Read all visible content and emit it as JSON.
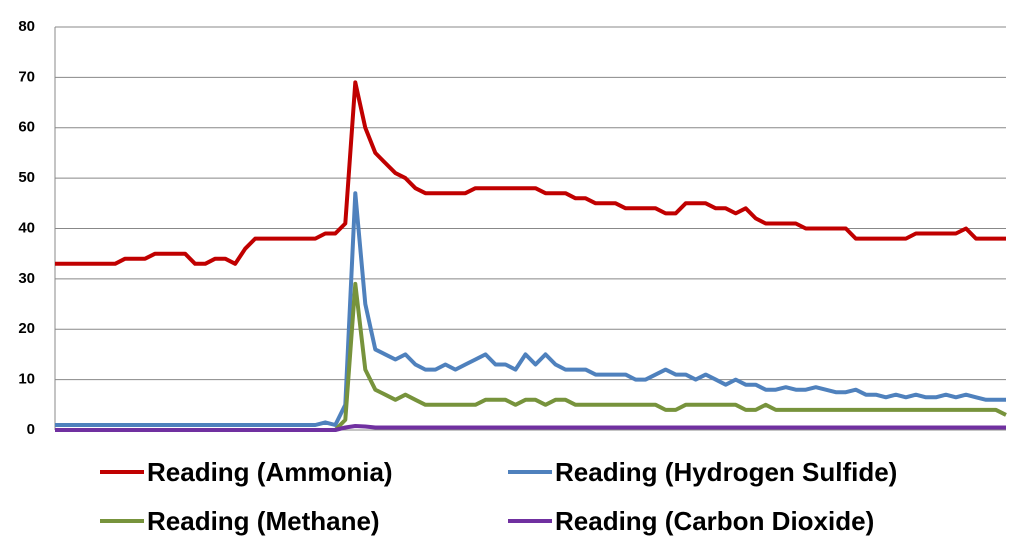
{
  "chart_data": {
    "type": "line",
    "ylim": [
      0,
      80
    ],
    "yticks": [
      0,
      10,
      20,
      30,
      40,
      50,
      60,
      70,
      80
    ],
    "grid": true,
    "series": [
      {
        "name": "Reading (Ammonia)",
        "color": "#c00000",
        "values": [
          33,
          33,
          33,
          33,
          33,
          33,
          33,
          34,
          34,
          34,
          35,
          35,
          35,
          35,
          33,
          33,
          34,
          34,
          33,
          36,
          38,
          38,
          38,
          38,
          38,
          38,
          38,
          39,
          39,
          41,
          69,
          60,
          55,
          53,
          51,
          50,
          48,
          47,
          47,
          47,
          47,
          47,
          48,
          48,
          48,
          48,
          48,
          48,
          48,
          47,
          47,
          47,
          46,
          46,
          45,
          45,
          45,
          44,
          44,
          44,
          44,
          43,
          43,
          45,
          45,
          45,
          44,
          44,
          43,
          44,
          42,
          41,
          41,
          41,
          41,
          40,
          40,
          40,
          40,
          40,
          38,
          38,
          38,
          38,
          38,
          38,
          39,
          39,
          39,
          39,
          39,
          40,
          38,
          38,
          38,
          38
        ]
      },
      {
        "name": "Reading (Hydrogen Sulfide)",
        "color": "#4f81bd",
        "values": [
          1,
          1,
          1,
          1,
          1,
          1,
          1,
          1,
          1,
          1,
          1,
          1,
          1,
          1,
          1,
          1,
          1,
          1,
          1,
          1,
          1,
          1,
          1,
          1,
          1,
          1,
          1,
          1.5,
          1,
          5,
          47,
          25,
          16,
          15,
          14,
          15,
          13,
          12,
          12,
          13,
          12,
          13,
          14,
          15,
          13,
          13,
          12,
          15,
          13,
          15,
          13,
          12,
          12,
          12,
          11,
          11,
          11,
          11,
          10,
          10,
          11,
          12,
          11,
          11,
          10,
          11,
          10,
          9,
          10,
          9,
          9,
          8,
          8,
          8.5,
          8,
          8,
          8.5,
          8,
          7.5,
          7.5,
          8,
          7,
          7,
          6.5,
          7,
          6.5,
          7,
          6.5,
          6.5,
          7,
          6.5,
          7,
          6.5,
          6,
          6,
          6
        ]
      },
      {
        "name": "Reading (Methane)",
        "color": "#77933c",
        "values": [
          0,
          0,
          0,
          0,
          0,
          0,
          0,
          0,
          0,
          0,
          0,
          0,
          0,
          0,
          0,
          0,
          0,
          0,
          0,
          0,
          0,
          0,
          0,
          0,
          0,
          0,
          0,
          0,
          0,
          2,
          29,
          12,
          8,
          7,
          6,
          7,
          6,
          5,
          5,
          5,
          5,
          5,
          5,
          6,
          6,
          6,
          5,
          6,
          6,
          5,
          6,
          6,
          5,
          5,
          5,
          5,
          5,
          5,
          5,
          5,
          5,
          4,
          4,
          5,
          5,
          5,
          5,
          5,
          5,
          4,
          4,
          5,
          4,
          4,
          4,
          4,
          4,
          4,
          4,
          4,
          4,
          4,
          4,
          4,
          4,
          4,
          4,
          4,
          4,
          4,
          4,
          4,
          4,
          4,
          4,
          3
        ]
      },
      {
        "name": "Reading (Carbon Dioxide)",
        "color": "#7030a0",
        "values": [
          0,
          0,
          0,
          0,
          0,
          0,
          0,
          0,
          0,
          0,
          0,
          0,
          0,
          0,
          0,
          0,
          0,
          0,
          0,
          0,
          0,
          0,
          0,
          0,
          0,
          0,
          0,
          0,
          0,
          0.5,
          0.8,
          0.7,
          0.5,
          0.5,
          0.5,
          0.5,
          0.5,
          0.5,
          0.5,
          0.5,
          0.5,
          0.5,
          0.5,
          0.5,
          0.5,
          0.5,
          0.5,
          0.5,
          0.5,
          0.5,
          0.5,
          0.5,
          0.5,
          0.5,
          0.5,
          0.5,
          0.5,
          0.5,
          0.5,
          0.5,
          0.5,
          0.5,
          0.5,
          0.5,
          0.5,
          0.5,
          0.5,
          0.5,
          0.5,
          0.5,
          0.5,
          0.5,
          0.5,
          0.5,
          0.5,
          0.5,
          0.5,
          0.5,
          0.5,
          0.5,
          0.5,
          0.5,
          0.5,
          0.5,
          0.5,
          0.5,
          0.5,
          0.5,
          0.5,
          0.5,
          0.5,
          0.5,
          0.5,
          0.5,
          0.5,
          0.5
        ]
      }
    ]
  }
}
